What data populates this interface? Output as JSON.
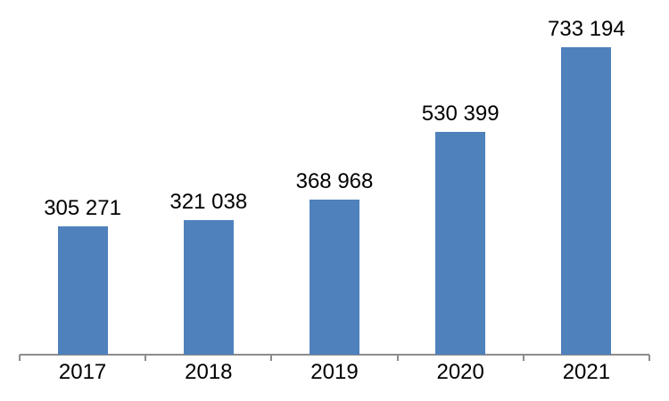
{
  "chart_data": {
    "type": "bar",
    "title": "",
    "xlabel": "",
    "ylabel": "",
    "categories": [
      "2017",
      "2018",
      "2019",
      "2020",
      "2021"
    ],
    "values": [
      305271,
      321038,
      368968,
      530399,
      733194
    ],
    "data_labels": [
      "305 271",
      "321 038",
      "368 968",
      "530 399",
      "733 194"
    ],
    "ylim": [
      0,
      800000
    ],
    "grid": false,
    "legend": "none",
    "y_axis_visible": false,
    "colors": {
      "bar": "#4f81bd",
      "axis": "#8c8c8c",
      "label_text": "#000000",
      "background": "#ffffff"
    }
  }
}
